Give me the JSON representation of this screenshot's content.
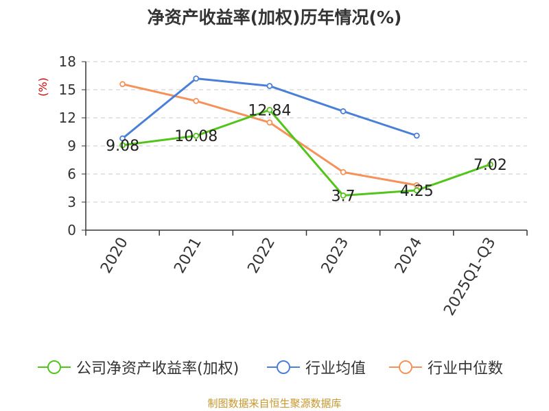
{
  "chart_data": {
    "type": "line",
    "title": "净资产收益率(加权)历年情况(%)",
    "ylabel": "(%)",
    "xlabel": "",
    "ylim": [
      0,
      18
    ],
    "yticks": [
      0,
      3,
      6,
      9,
      12,
      15,
      18
    ],
    "grid": true,
    "legend_position": "bottom",
    "categories": [
      "2020",
      "2021",
      "2022",
      "2023",
      "2024",
      "2025Q1-Q3"
    ],
    "series": [
      {
        "name": "公司净资产收益率(加权)",
        "color": "#52c41a",
        "values": [
          9.08,
          10.08,
          12.84,
          3.7,
          4.25,
          7.02
        ],
        "labels": [
          "9.08",
          "10.08",
          "12.84",
          "3.7",
          "4.25",
          "7.02"
        ]
      },
      {
        "name": "行业均值",
        "color": "#4a7fd8",
        "values": [
          9.8,
          16.2,
          15.4,
          12.7,
          10.1,
          null
        ]
      },
      {
        "name": "行业中位数",
        "color": "#f4925a",
        "values": [
          15.6,
          13.8,
          11.5,
          6.2,
          4.8,
          null
        ]
      }
    ]
  },
  "source": "制图数据来自恒生聚源数据库"
}
